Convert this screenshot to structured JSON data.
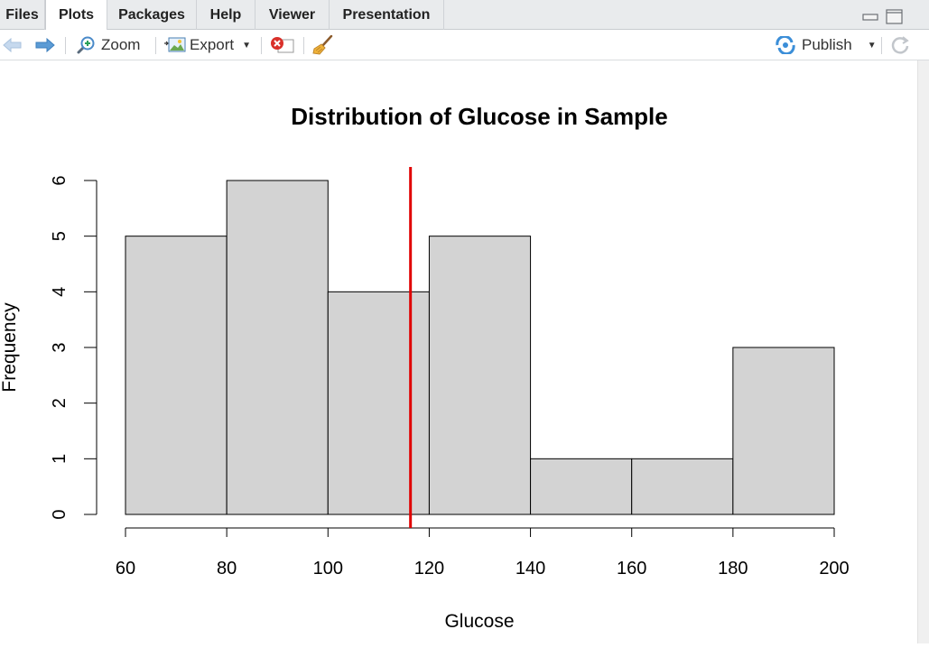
{
  "tabs": [
    {
      "label": "Files",
      "active": false
    },
    {
      "label": "Plots",
      "active": true
    },
    {
      "label": "Packages",
      "active": false
    },
    {
      "label": "Help",
      "active": false
    },
    {
      "label": "Viewer",
      "active": false
    },
    {
      "label": "Presentation",
      "active": false
    }
  ],
  "toolbar": {
    "zoom_label": "Zoom",
    "export_label": "Export",
    "publish_label": "Publish"
  },
  "chart_data": {
    "type": "bar",
    "title": "Distribution of Glucose in Sample",
    "xlabel": "Glucose",
    "ylabel": "Frequency",
    "bins": [
      {
        "from": 60,
        "to": 80,
        "count": 5
      },
      {
        "from": 80,
        "to": 100,
        "count": 6
      },
      {
        "from": 100,
        "to": 120,
        "count": 4
      },
      {
        "from": 120,
        "to": 140,
        "count": 5
      },
      {
        "from": 140,
        "to": 160,
        "count": 1
      },
      {
        "from": 160,
        "to": 180,
        "count": 1
      },
      {
        "from": 180,
        "to": 200,
        "count": 3
      }
    ],
    "xlim": [
      60,
      200
    ],
    "ylim": [
      0,
      6
    ],
    "xticks": [
      60,
      80,
      100,
      120,
      140,
      160,
      180,
      200
    ],
    "yticks": [
      0,
      1,
      2,
      3,
      4,
      5,
      6
    ],
    "reference_line": {
      "x": 116.3,
      "color": "#e00000"
    },
    "bar_fill": "#d3d3d3",
    "grid": false
  }
}
